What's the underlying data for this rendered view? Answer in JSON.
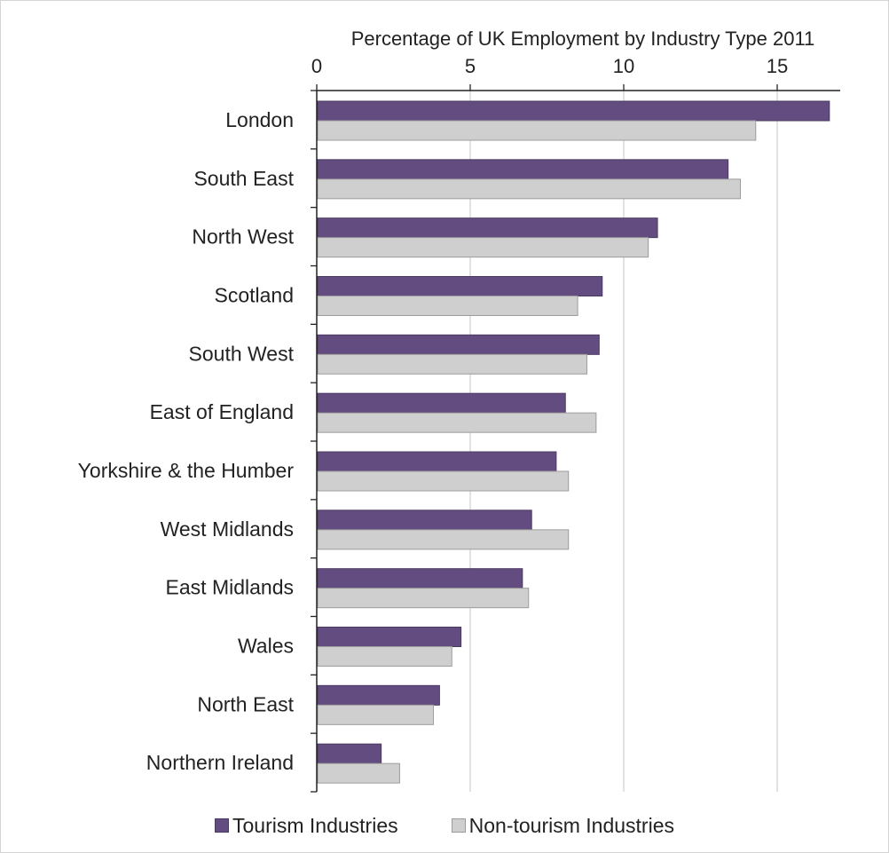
{
  "chart_data": {
    "type": "bar",
    "orientation": "horizontal",
    "title": "Percentage of UK Employment by Industry Type 2011",
    "categories": [
      "London",
      "South East",
      "North West",
      "Scotland",
      "South West",
      "East of England",
      "Yorkshire & the Humber",
      "West Midlands",
      "East Midlands",
      "Wales",
      "North East",
      "Northern Ireland"
    ],
    "series": [
      {
        "name": "Tourism Industries",
        "color": "#634d80",
        "values": [
          16.7,
          13.4,
          11.1,
          9.3,
          9.2,
          8.1,
          7.8,
          7.0,
          6.7,
          4.7,
          4.0,
          2.1
        ]
      },
      {
        "name": "Non-tourism Industries",
        "color": "#cfcfcf",
        "values": [
          14.3,
          13.8,
          10.8,
          8.5,
          8.8,
          9.1,
          8.2,
          8.2,
          6.9,
          4.4,
          3.8,
          2.7
        ]
      }
    ],
    "xlim": [
      0,
      17
    ],
    "xticks": [
      0,
      5,
      10,
      15
    ],
    "xaxis_position": "top",
    "grid": "vertical",
    "legend_position": "bottom"
  }
}
